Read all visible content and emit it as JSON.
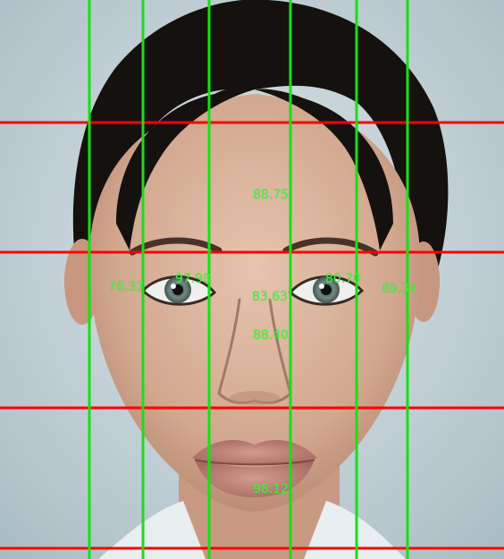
{
  "image": {
    "subject": "portrait",
    "colors": {
      "background": "#c7d6db",
      "hair": "#14110f",
      "skin": "#d7b39e",
      "lips": "#b88076",
      "shirt": "#e9eef0"
    }
  },
  "overlay": {
    "colors": {
      "horizontal_lines": "#ff0000",
      "vertical_lines": "#16e016",
      "scores": "#39ff39"
    },
    "scores": [
      {
        "name": "forehead",
        "value": "88.75"
      },
      {
        "name": "left-eye-outer",
        "value": "76.37"
      },
      {
        "name": "left-eye",
        "value": "97.98"
      },
      {
        "name": "right-eye",
        "value": "80.70"
      },
      {
        "name": "right-eye-outer",
        "value": "89.34"
      },
      {
        "name": "eye-gap",
        "value": "83.63"
      },
      {
        "name": "nose",
        "value": "88.40"
      },
      {
        "name": "mouth",
        "value": "98.12"
      }
    ]
  }
}
